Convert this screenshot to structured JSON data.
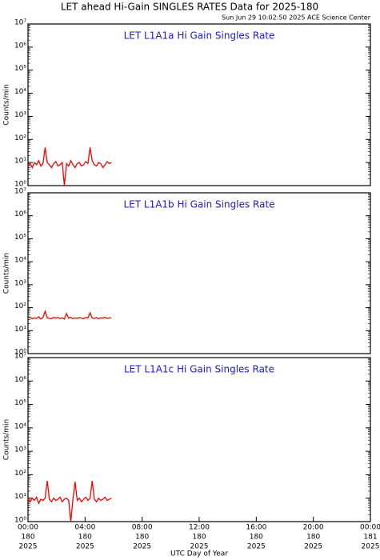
{
  "title": "LET ahead Hi-Gain SINGLES RATES Data for 2025-180",
  "timestamp": "Sun Jun 29 10:02:50 2025 ACE Science Center",
  "chart_data": [
    {
      "type": "line",
      "title": "LET L1A1a Hi Gain Singles Rate",
      "ylabel": "Counts/min",
      "log_y": true,
      "color": "#ff0000",
      "xlim": [
        0,
        24
      ],
      "ylim": [
        1,
        10000000
      ],
      "yticks": [
        {
          "value": 1,
          "label": "10⁰"
        },
        {
          "value": 10,
          "label": "10¹"
        },
        {
          "value": 100,
          "label": "10²"
        },
        {
          "value": 1000,
          "label": "10³"
        },
        {
          "value": 10000,
          "label": "10⁴"
        },
        {
          "value": 100000,
          "label": "10⁵"
        },
        {
          "value": 1000000,
          "label": "10⁶"
        },
        {
          "value": 10000000,
          "label": "10⁷"
        }
      ],
      "x": [
        0,
        0.15,
        0.3,
        0.45,
        0.6,
        0.75,
        0.9,
        1.05,
        1.2,
        1.35,
        1.5,
        1.65,
        1.8,
        1.95,
        2.1,
        2.25,
        2.4,
        2.55,
        2.7,
        2.85,
        3,
        3.15,
        3.3,
        3.45,
        3.6,
        3.75,
        3.9,
        4.05,
        4.2,
        4.35,
        4.5,
        4.65,
        4.8,
        4.95,
        5.1,
        5.25,
        5.4,
        5.55,
        5.7,
        5.85
      ],
      "values": [
        7,
        9,
        6,
        10,
        8,
        12,
        7,
        9,
        45,
        10,
        8,
        6,
        9,
        11,
        7,
        8,
        10,
        1,
        9,
        7,
        12,
        8,
        6,
        9,
        10,
        7,
        8,
        11,
        9,
        45,
        12,
        8,
        7,
        10,
        9,
        6,
        8,
        11,
        9,
        10
      ]
    },
    {
      "type": "line",
      "title": "LET L1A1b Hi Gain Singles Rate",
      "ylabel": "Counts/min",
      "log_y": true,
      "color": "#ff0000",
      "xlim": [
        0,
        24
      ],
      "ylim": [
        1,
        10000000
      ],
      "yticks": [
        {
          "value": 1,
          "label": "10⁰"
        },
        {
          "value": 10,
          "label": "10¹"
        },
        {
          "value": 100,
          "label": "10²"
        },
        {
          "value": 1000,
          "label": "10³"
        },
        {
          "value": 10000,
          "label": "10⁴"
        },
        {
          "value": 100000,
          "label": "10⁵"
        },
        {
          "value": 1000000,
          "label": "10⁶"
        },
        {
          "value": 10000000,
          "label": "10⁷"
        }
      ],
      "x": [
        0,
        0.15,
        0.3,
        0.45,
        0.6,
        0.75,
        0.9,
        1.05,
        1.2,
        1.35,
        1.5,
        1.65,
        1.8,
        1.95,
        2.1,
        2.25,
        2.4,
        2.55,
        2.7,
        2.85,
        3,
        3.15,
        3.3,
        3.45,
        3.6,
        3.75,
        3.9,
        4.05,
        4.2,
        4.35,
        4.5,
        4.65,
        4.8,
        4.95,
        5.1,
        5.25,
        5.4,
        5.55,
        5.7,
        5.85
      ],
      "values": [
        35,
        38,
        33,
        36,
        34,
        40,
        32,
        37,
        70,
        36,
        34,
        33,
        38,
        35,
        37,
        34,
        36,
        32,
        55,
        35,
        38,
        33,
        36,
        34,
        37,
        35,
        33,
        38,
        36,
        60,
        35,
        34,
        37,
        33,
        36,
        35,
        38,
        34,
        36,
        35
      ]
    },
    {
      "type": "line",
      "title": "LET L1A1c Hi Gain Singles Rate",
      "ylabel": "Counts/min",
      "xlabel": "UTC Day of Year",
      "log_y": true,
      "color": "#ff0000",
      "xlim": [
        0,
        24
      ],
      "ylim": [
        1,
        10000000
      ],
      "yticks": [
        {
          "value": 1,
          "label": "10⁰"
        },
        {
          "value": 10,
          "label": "10¹"
        },
        {
          "value": 100,
          "label": "10²"
        },
        {
          "value": 1000,
          "label": "10³"
        },
        {
          "value": 10000,
          "label": "10⁴"
        },
        {
          "value": 100000,
          "label": "10⁵"
        },
        {
          "value": 1000000,
          "label": "10⁶"
        },
        {
          "value": 10000000,
          "label": "10⁷"
        }
      ],
      "xticks": [
        {
          "value": 0,
          "label": [
            "00:00",
            "180",
            "2025"
          ]
        },
        {
          "value": 4,
          "label": [
            "04:00",
            "180",
            "2025"
          ]
        },
        {
          "value": 8,
          "label": [
            "08:00",
            "180",
            "2025"
          ]
        },
        {
          "value": 12,
          "label": [
            "12:00",
            "180",
            "2025"
          ]
        },
        {
          "value": 16,
          "label": [
            "16:00",
            "180",
            "2025"
          ]
        },
        {
          "value": 20,
          "label": [
            "20:00",
            "180",
            "2025"
          ]
        },
        {
          "value": 24,
          "label": [
            "00:00",
            "181",
            "2025"
          ]
        }
      ],
      "x": [
        0,
        0.15,
        0.3,
        0.45,
        0.6,
        0.75,
        0.9,
        1.05,
        1.2,
        1.35,
        1.5,
        1.65,
        1.8,
        1.95,
        2.1,
        2.25,
        2.4,
        2.55,
        2.7,
        2.85,
        3,
        3.15,
        3.3,
        3.45,
        3.6,
        3.75,
        3.9,
        4.05,
        4.2,
        4.35,
        4.5,
        4.65,
        4.8,
        4.95,
        5.1,
        5.25,
        5.4,
        5.55,
        5.7,
        5.85
      ],
      "values": [
        9,
        7,
        10,
        8,
        11,
        6,
        9,
        8,
        10,
        55,
        9,
        7,
        10,
        8,
        9,
        11,
        7,
        9,
        10,
        8,
        1,
        9,
        50,
        8,
        10,
        7,
        9,
        11,
        8,
        10,
        55,
        9,
        7,
        10,
        8,
        9,
        11,
        8,
        9,
        10
      ]
    }
  ]
}
